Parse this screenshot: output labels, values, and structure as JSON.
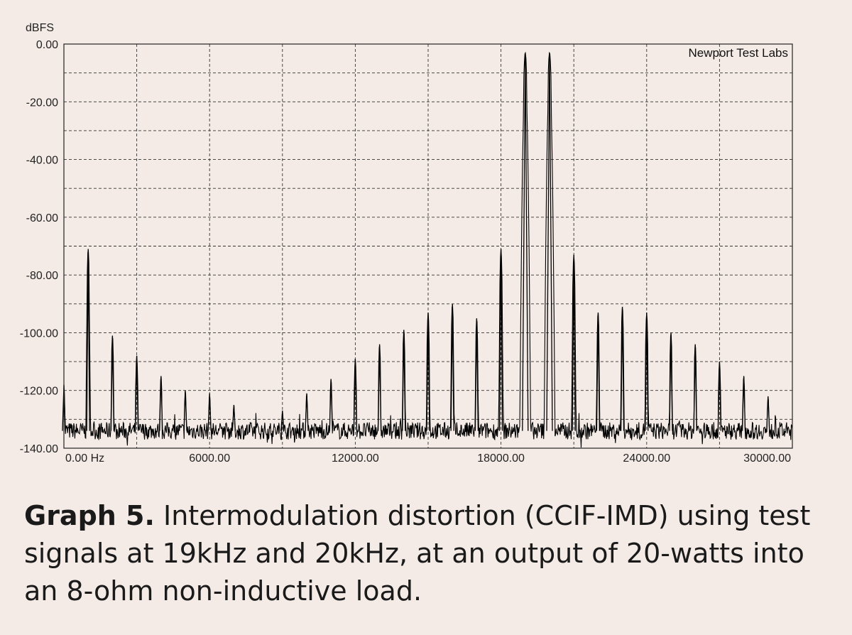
{
  "chart_data": {
    "type": "line",
    "title": "",
    "ylabel": "dBFS",
    "xlabel": "",
    "watermark": "Newport Test Labs",
    "xlim": [
      0,
      30000
    ],
    "ylim": [
      -140,
      0
    ],
    "x_ticks": [
      {
        "value": 0,
        "label": "0.00 Hz"
      },
      {
        "value": 6000,
        "label": "6000.00"
      },
      {
        "value": 12000,
        "label": "12000.00"
      },
      {
        "value": 18000,
        "label": "18000.00"
      },
      {
        "value": 24000,
        "label": "24000.00"
      },
      {
        "value": 30000,
        "label": "30000.00"
      }
    ],
    "y_ticks": [
      {
        "value": 0,
        "label": "0.00"
      },
      {
        "value": -20,
        "label": "-20.00"
      },
      {
        "value": -40,
        "label": "-40.00"
      },
      {
        "value": -60,
        "label": "-60.00"
      },
      {
        "value": -80,
        "label": "-80.00"
      },
      {
        "value": -100,
        "label": "-100.00"
      },
      {
        "value": -120,
        "label": "-120.00"
      },
      {
        "value": -140,
        "label": "-140.00"
      }
    ],
    "grid": true,
    "noise_floor_dbfs": -134,
    "series": [
      {
        "name": "",
        "color": "#000000",
        "peaks": [
          {
            "x": 0,
            "y": -118
          },
          {
            "x": 1000,
            "y": -71
          },
          {
            "x": 2000,
            "y": -101
          },
          {
            "x": 3000,
            "y": -108
          },
          {
            "x": 4000,
            "y": -115
          },
          {
            "x": 5000,
            "y": -120
          },
          {
            "x": 6000,
            "y": -121
          },
          {
            "x": 7000,
            "y": -125
          },
          {
            "x": 9000,
            "y": -127
          },
          {
            "x": 10000,
            "y": -121
          },
          {
            "x": 11000,
            "y": -116
          },
          {
            "x": 12000,
            "y": -109
          },
          {
            "x": 13000,
            "y": -104
          },
          {
            "x": 14000,
            "y": -99
          },
          {
            "x": 15000,
            "y": -93
          },
          {
            "x": 16000,
            "y": -90
          },
          {
            "x": 17000,
            "y": -95
          },
          {
            "x": 18000,
            "y": -71
          },
          {
            "x": 19000,
            "y": -3
          },
          {
            "x": 20000,
            "y": -3
          },
          {
            "x": 21000,
            "y": -73
          },
          {
            "x": 22000,
            "y": -93
          },
          {
            "x": 23000,
            "y": -91
          },
          {
            "x": 24000,
            "y": -93
          },
          {
            "x": 25000,
            "y": -100
          },
          {
            "x": 26000,
            "y": -104
          },
          {
            "x": 27000,
            "y": -110
          },
          {
            "x": 28000,
            "y": -115
          },
          {
            "x": 29000,
            "y": -122
          }
        ]
      }
    ]
  },
  "caption": {
    "lead": "Graph 5.",
    "body": " Intermodulation distortion (CCIF-IMD) using test signals at 19kHz and 20kHz, at an output of 20-watts into an 8-ohm non-inductive load."
  }
}
